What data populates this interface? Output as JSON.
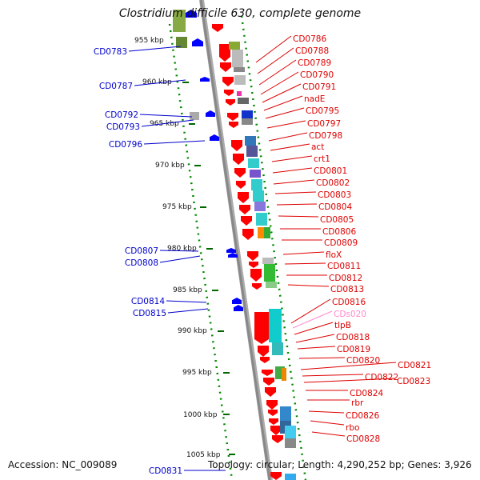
{
  "title": "Clostridium difficile 630, complete genome",
  "footer": {
    "accession": "Accession: NC_009089",
    "topology": "Topology: circular; Length: 4,290,252 bp; Genes: 3,926"
  },
  "colors": {
    "forward_gene": "#ff0000",
    "reverse_gene": "#0000ff",
    "rna_label": "#ff88cc",
    "backbone": "#888888",
    "scale_dots": "#008800"
  },
  "ticks": [
    "955 kbp",
    "960 kbp",
    "965 kbp",
    "970 kbp",
    "975 kbp",
    "980 kbp",
    "985 kbp",
    "990 kbp",
    "995 kbp",
    "1000 kbp",
    "1005 kbp"
  ],
  "right_labels": [
    {
      "text": "CD0786"
    },
    {
      "text": "CD0788"
    },
    {
      "text": "CD0789"
    },
    {
      "text": "CD0790"
    },
    {
      "text": "CD0791"
    },
    {
      "text": "nadE"
    },
    {
      "text": "CD0795"
    },
    {
      "text": "CD0797"
    },
    {
      "text": "CD0798"
    },
    {
      "text": "act"
    },
    {
      "text": "crt1"
    },
    {
      "text": "CD0801"
    },
    {
      "text": "CD0802"
    },
    {
      "text": "CD0803"
    },
    {
      "text": "CD0804"
    },
    {
      "text": "CD0805"
    },
    {
      "text": "CD0806"
    },
    {
      "text": "CD0809"
    },
    {
      "text": "floX"
    },
    {
      "text": "CD0811"
    },
    {
      "text": "CD0812"
    },
    {
      "text": "CD0813"
    },
    {
      "text": "CD0816"
    },
    {
      "text": "CDs020"
    },
    {
      "text": "tlpB"
    },
    {
      "text": "CD0818"
    },
    {
      "text": "CD0819"
    },
    {
      "text": "CD0820"
    },
    {
      "text": "CD0821"
    },
    {
      "text": "CD0822"
    },
    {
      "text": "CD0823"
    },
    {
      "text": "CD0824"
    },
    {
      "text": "rbr"
    },
    {
      "text": "CD0826"
    },
    {
      "text": "rbo"
    },
    {
      "text": "CD0828"
    }
  ],
  "left_labels": [
    {
      "text": "CD0783"
    },
    {
      "text": "CD0787"
    },
    {
      "text": "CD0792"
    },
    {
      "text": "CD0793"
    },
    {
      "text": "CD0796"
    },
    {
      "text": "CD0807"
    },
    {
      "text": "CD0808"
    },
    {
      "text": "CD0814"
    },
    {
      "text": "CD0815"
    },
    {
      "text": "CD0831"
    }
  ]
}
